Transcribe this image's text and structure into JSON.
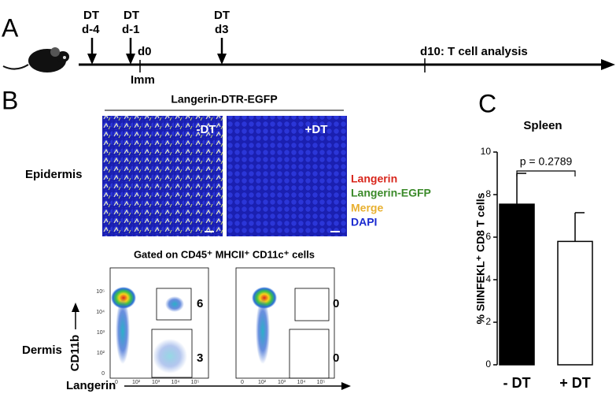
{
  "panel_a": {
    "label": "A",
    "events": [
      {
        "top": "DT",
        "bottom": "d-4"
      },
      {
        "top": "DT",
        "bottom": "d-1"
      },
      {
        "top": "DT",
        "bottom": "d3"
      }
    ],
    "d0": "d0",
    "imm": "Imm",
    "analysis": "d10: T cell analysis"
  },
  "panel_b": {
    "label": "B",
    "title": "Langerin-DTR-EGFP",
    "images": [
      "-DT",
      "+DT"
    ],
    "epidermis": "Epidermis",
    "legend": [
      "Langerin",
      "Langerin-EGFP",
      "Merge",
      "DAPI"
    ],
    "gating": "Gated on CD45⁺ MHCII⁺ CD11c⁺ cells",
    "dermis": "Dermis",
    "y_axis": "CD11b",
    "x_axis": "Langerin",
    "gates": [
      [
        "6",
        "3"
      ],
      [
        "0",
        "0"
      ]
    ],
    "flow_ticks": [
      "0",
      "10²",
      "10³",
      "10⁴",
      "10⁵"
    ]
  },
  "chart_data": {
    "type": "bar",
    "panel_label": "C",
    "title": "Spleen",
    "y_label": "% SIINFEKL⁺ CD8 T cells",
    "annotation": "p = 0.2789",
    "categories": [
      "- DT",
      "+ DT"
    ],
    "values": [
      7.55,
      5.8
    ],
    "errors": [
      1.45,
      1.35
    ],
    "colors": [
      "#000000",
      "#ffffff"
    ],
    "ylim": [
      0,
      10
    ],
    "yticks": [
      0,
      2,
      4,
      6,
      8,
      10
    ]
  }
}
